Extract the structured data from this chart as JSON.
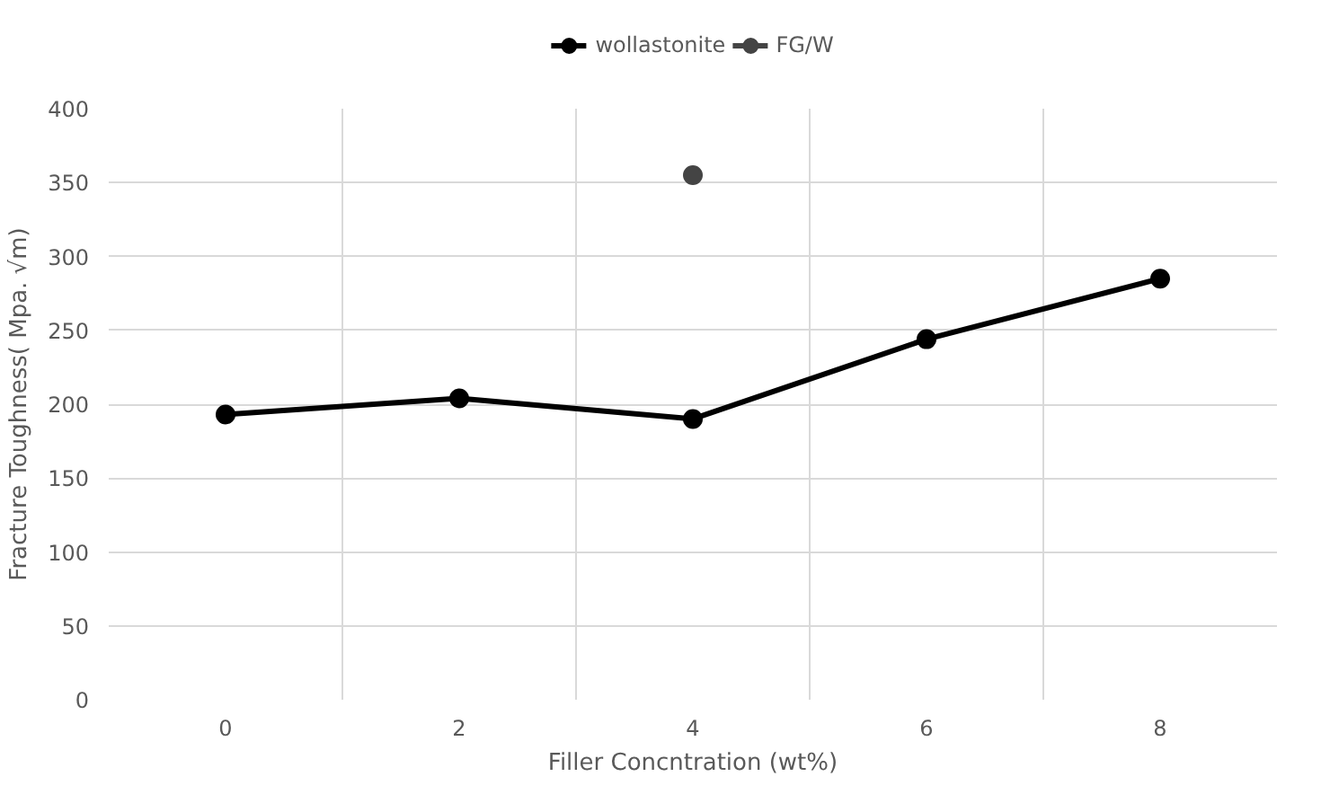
{
  "chart_data": {
    "type": "line",
    "xlabel": "Filler Concntration (wt%)",
    "ylabel": "Fracture Toughness( Mpa. √m)",
    "categories": [
      "0",
      "2",
      "4",
      "6",
      "8"
    ],
    "series": [
      {
        "name": "wollastonite",
        "color": "#000000",
        "values": [
          193,
          204,
          190,
          244,
          285
        ]
      },
      {
        "name": "FG/W",
        "color": "#444444",
        "values": [
          null,
          null,
          355,
          null,
          null
        ]
      }
    ],
    "ylim": [
      0,
      400
    ],
    "yticks": [
      0,
      50,
      100,
      150,
      200,
      250,
      300,
      350,
      400
    ],
    "grid": true,
    "legend": "top",
    "marker": "circle",
    "line_style": "solid"
  }
}
